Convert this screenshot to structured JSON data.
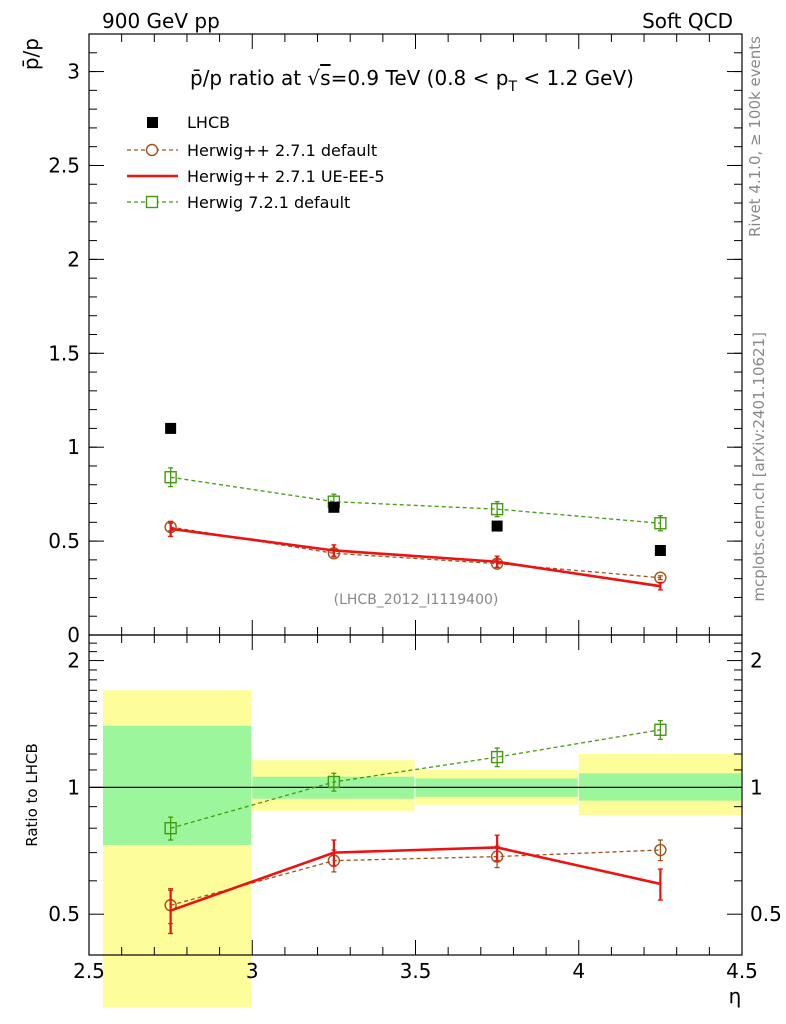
{
  "header": {
    "left_label": "900 GeV pp",
    "right_label": "Soft QCD"
  },
  "side_labels": {
    "rivet": "Rivet 4.1.0, ≥ 100k events",
    "mcplots": "mcplots.cern.ch [arXiv:2401.10621]"
  },
  "colors": {
    "data": "#000000",
    "herwigpp_default": "#a0521a",
    "herwigpp_ueee5": "#ee1111",
    "herwig7": "#449911",
    "band_inner": "#9cf79c",
    "band_outer": "#fdfd9a"
  },
  "chart_data": [
    {
      "id": "main",
      "type": "scatter",
      "title_parts": {
        "pre": "p̄/p ratio at √",
        "root": "s",
        "mid": "=0.9 TeV (0.8 < p",
        "sub": "T",
        "post": " < 1.2 GeV)"
      },
      "ylabel": "p̄/p",
      "analysis_tag": "(LHCB_2012_I1119400)",
      "xlim": [
        2.5,
        4.5
      ],
      "ylim": [
        0,
        3.2
      ],
      "yticks": [
        0,
        0.5,
        1,
        1.5,
        2,
        2.5,
        3
      ],
      "ytick_labels": [
        "0",
        "0.5",
        "1",
        "1.5",
        "2",
        "2.5",
        "3"
      ],
      "x": [
        2.75,
        3.25,
        3.75,
        4.25
      ],
      "legend": [
        {
          "key": "data",
          "label": "LHCB"
        },
        {
          "key": "herwigpp_default",
          "label": "Herwig++ 2.7.1 default"
        },
        {
          "key": "herwigpp_ueee5",
          "label": "Herwig++ 2.7.1 UE-EE-5"
        },
        {
          "key": "herwig7",
          "label": "Herwig 7.2.1 default"
        }
      ],
      "series": [
        {
          "key": "data",
          "name": "LHCB",
          "values": [
            1.1,
            0.68,
            0.58,
            0.45
          ]
        },
        {
          "key": "herwigpp_default",
          "name": "Herwig++ 2.7.1 default",
          "values": [
            0.575,
            0.435,
            0.38,
            0.305
          ],
          "errors": [
            0.02,
            0.02,
            0.02,
            0.01
          ]
        },
        {
          "key": "herwigpp_ueee5",
          "name": "Herwig++ 2.7.1 UE-EE-5",
          "values": [
            0.565,
            0.45,
            0.39,
            0.26
          ],
          "errors": [
            0.04,
            0.03,
            0.03,
            0.02
          ]
        },
        {
          "key": "herwig7",
          "name": "Herwig 7.2.1 default",
          "values": [
            0.84,
            0.71,
            0.67,
            0.595
          ],
          "errors": [
            0.05,
            0.04,
            0.04,
            0.04
          ]
        }
      ]
    },
    {
      "id": "ratio",
      "type": "scatter",
      "ylabel": "Ratio to LHCB",
      "xlabel": "η",
      "xlim": [
        2.5,
        4.5
      ],
      "ylim": [
        0.4,
        2.3
      ],
      "log_y": true,
      "yticks": [
        0.5,
        1,
        2
      ],
      "ytick_labels": [
        "0.5",
        "1",
        "2"
      ],
      "xticks": [
        2.5,
        3,
        3.5,
        4,
        4.5
      ],
      "xtick_labels": [
        "2.5",
        "3",
        "3.5",
        "4",
        "4.5"
      ],
      "x": [
        2.75,
        3.25,
        3.75,
        4.25
      ],
      "bins": [
        [
          2.5,
          3.0
        ],
        [
          3.0,
          3.5
        ],
        [
          3.5,
          4.0
        ],
        [
          4.0,
          4.5
        ]
      ],
      "band_outer": [
        [
          0.3,
          1.7
        ],
        [
          0.88,
          1.16
        ],
        [
          0.91,
          1.1
        ],
        [
          0.86,
          1.2
        ]
      ],
      "band_inner": [
        [
          0.73,
          1.4
        ],
        [
          0.94,
          1.06
        ],
        [
          0.95,
          1.05
        ],
        [
          0.93,
          1.08
        ]
      ],
      "series": [
        {
          "key": "herwigpp_default",
          "name": "Herwig++ 2.7.1 default",
          "values": [
            0.525,
            0.67,
            0.685,
            0.71
          ],
          "errors": [
            0.05,
            0.04,
            0.04,
            0.04
          ]
        },
        {
          "key": "herwigpp_ueee5",
          "name": "Herwig++ 2.7.1 UE-EE-5",
          "values": [
            0.51,
            0.7,
            0.72,
            0.59
          ],
          "errors": [
            0.06,
            0.05,
            0.05,
            0.05
          ]
        },
        {
          "key": "herwig7",
          "name": "Herwig 7.2.1 default",
          "values": [
            0.8,
            1.03,
            1.18,
            1.37
          ],
          "errors": [
            0.05,
            0.05,
            0.06,
            0.07
          ]
        }
      ]
    }
  ]
}
